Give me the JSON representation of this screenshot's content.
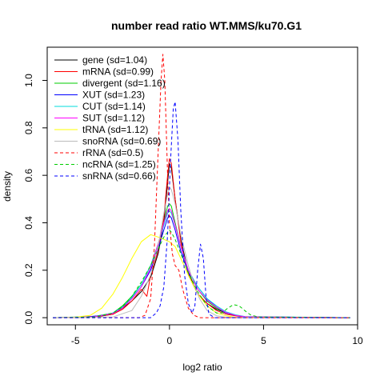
{
  "chart_data": {
    "type": "line",
    "title": "number read ratio WT.MMS/ku70.G1",
    "xlabel": "log2 ratio",
    "ylabel": "density",
    "xlim": [
      -6.5,
      10
    ],
    "ylim": [
      -0.03,
      1.14
    ],
    "x_ticks": [
      -5,
      0,
      5,
      10
    ],
    "y_ticks": [
      0.0,
      0.2,
      0.4,
      0.6,
      0.8,
      1.0
    ],
    "x_tick_labels": [
      "-5",
      "0",
      "5",
      "10"
    ],
    "y_tick_labels": [
      "0.0",
      "0.2",
      "0.4",
      "0.6",
      "0.8",
      "1.0"
    ],
    "grid": false,
    "legend_position": "top-left",
    "series": [
      {
        "name": "gene (sd=1.04)",
        "color": "#000000",
        "dash": "solid",
        "points": [
          [
            -6.2,
            0
          ],
          [
            -4,
            0.002
          ],
          [
            -3,
            0.015
          ],
          [
            -2.5,
            0.04
          ],
          [
            -2,
            0.07
          ],
          [
            -1.5,
            0.11
          ],
          [
            -1,
            0.17
          ],
          [
            -0.6,
            0.27
          ],
          [
            -0.3,
            0.4
          ],
          [
            -0.1,
            0.57
          ],
          [
            0,
            0.65
          ],
          [
            0.1,
            0.63
          ],
          [
            0.3,
            0.5
          ],
          [
            0.6,
            0.33
          ],
          [
            1,
            0.19
          ],
          [
            1.5,
            0.1
          ],
          [
            2,
            0.06
          ],
          [
            2.5,
            0.035
          ],
          [
            3,
            0.02
          ],
          [
            3.5,
            0.01
          ],
          [
            4,
            0.004
          ],
          [
            5,
            0.001
          ],
          [
            9.6,
            0
          ]
        ]
      },
      {
        "name": "mRNA (sd=0.99)",
        "color": "#ff0000",
        "dash": "solid",
        "points": [
          [
            -6.2,
            0
          ],
          [
            -4,
            0.003
          ],
          [
            -3,
            0.015
          ],
          [
            -2.5,
            0.035
          ],
          [
            -2,
            0.07
          ],
          [
            -1.5,
            0.12
          ],
          [
            -1.2,
            0.09
          ],
          [
            -1,
            0.18
          ],
          [
            -0.6,
            0.28
          ],
          [
            -0.3,
            0.42
          ],
          [
            -0.1,
            0.6
          ],
          [
            0,
            0.67
          ],
          [
            0.1,
            0.65
          ],
          [
            0.3,
            0.5
          ],
          [
            0.6,
            0.32
          ],
          [
            1,
            0.18
          ],
          [
            1.5,
            0.1
          ],
          [
            2,
            0.06
          ],
          [
            2.5,
            0.03
          ],
          [
            3,
            0.015
          ],
          [
            3.5,
            0.008
          ],
          [
            4,
            0.003
          ],
          [
            9.6,
            0
          ]
        ]
      },
      {
        "name": "divergent (sd=1.16)",
        "color": "#00cc00",
        "dash": "solid",
        "points": [
          [
            -6.2,
            0
          ],
          [
            -4,
            0.005
          ],
          [
            -3,
            0.02
          ],
          [
            -2.5,
            0.05
          ],
          [
            -2,
            0.09
          ],
          [
            -1.5,
            0.14
          ],
          [
            -1,
            0.22
          ],
          [
            -0.6,
            0.31
          ],
          [
            -0.3,
            0.4
          ],
          [
            -0.1,
            0.47
          ],
          [
            0,
            0.48
          ],
          [
            0.1,
            0.47
          ],
          [
            0.3,
            0.4
          ],
          [
            0.6,
            0.3
          ],
          [
            1,
            0.2
          ],
          [
            1.5,
            0.12
          ],
          [
            2,
            0.07
          ],
          [
            2.5,
            0.04
          ],
          [
            3,
            0.02
          ],
          [
            3.5,
            0.01
          ],
          [
            4,
            0.004
          ],
          [
            9.6,
            0
          ]
        ]
      },
      {
        "name": "XUT (sd=1.23)",
        "color": "#0000ff",
        "dash": "solid",
        "points": [
          [
            -6.2,
            0
          ],
          [
            -4.5,
            0.003
          ],
          [
            -3.5,
            0.01
          ],
          [
            -3,
            0.02
          ],
          [
            -2.5,
            0.045
          ],
          [
            -2,
            0.08
          ],
          [
            -1.5,
            0.13
          ],
          [
            -1,
            0.2
          ],
          [
            -0.6,
            0.29
          ],
          [
            -0.3,
            0.37
          ],
          [
            -0.1,
            0.42
          ],
          [
            0,
            0.43
          ],
          [
            0.1,
            0.42
          ],
          [
            0.3,
            0.37
          ],
          [
            0.6,
            0.28
          ],
          [
            1,
            0.19
          ],
          [
            1.5,
            0.13
          ],
          [
            2,
            0.08
          ],
          [
            2.5,
            0.045
          ],
          [
            3,
            0.02
          ],
          [
            3.5,
            0.01
          ],
          [
            4,
            0.004
          ],
          [
            9.6,
            0
          ]
        ]
      },
      {
        "name": "CUT (sd=1.14)",
        "color": "#00dddd",
        "dash": "solid",
        "points": [
          [
            -6.2,
            0
          ],
          [
            -4,
            0.004
          ],
          [
            -3,
            0.02
          ],
          [
            -2.5,
            0.045
          ],
          [
            -2,
            0.085
          ],
          [
            -1.5,
            0.14
          ],
          [
            -1,
            0.22
          ],
          [
            -0.6,
            0.31
          ],
          [
            -0.3,
            0.39
          ],
          [
            -0.1,
            0.44
          ],
          [
            0,
            0.45
          ],
          [
            0.1,
            0.44
          ],
          [
            0.3,
            0.39
          ],
          [
            0.6,
            0.3
          ],
          [
            1,
            0.2
          ],
          [
            1.5,
            0.13
          ],
          [
            2,
            0.08
          ],
          [
            2.5,
            0.05
          ],
          [
            3,
            0.025
          ],
          [
            3.5,
            0.012
          ],
          [
            4,
            0.005
          ],
          [
            9.6,
            0
          ]
        ]
      },
      {
        "name": "SUT (sd=1.12)",
        "color": "#ff00ff",
        "dash": "solid",
        "points": [
          [
            -6.2,
            0
          ],
          [
            -4,
            0.004
          ],
          [
            -3,
            0.018
          ],
          [
            -2.5,
            0.04
          ],
          [
            -2,
            0.08
          ],
          [
            -1.5,
            0.13
          ],
          [
            -1,
            0.21
          ],
          [
            -0.6,
            0.31
          ],
          [
            -0.3,
            0.4
          ],
          [
            -0.1,
            0.45
          ],
          [
            0,
            0.46
          ],
          [
            0.1,
            0.45
          ],
          [
            0.3,
            0.39
          ],
          [
            0.6,
            0.3
          ],
          [
            1,
            0.2
          ],
          [
            1.5,
            0.12
          ],
          [
            2,
            0.075
          ],
          [
            2.5,
            0.045
          ],
          [
            3,
            0.022
          ],
          [
            3.5,
            0.01
          ],
          [
            4,
            0.004
          ],
          [
            9.6,
            0
          ]
        ]
      },
      {
        "name": "tRNA (sd=1.12)",
        "color": "#ffff00",
        "dash": "solid",
        "points": [
          [
            -6.2,
            0
          ],
          [
            -5,
            0.002
          ],
          [
            -4.2,
            0.01
          ],
          [
            -3.6,
            0.04
          ],
          [
            -3,
            0.1
          ],
          [
            -2.5,
            0.17
          ],
          [
            -2,
            0.25
          ],
          [
            -1.5,
            0.32
          ],
          [
            -1,
            0.35
          ],
          [
            -0.6,
            0.34
          ],
          [
            -0.3,
            0.33
          ],
          [
            0,
            0.32
          ],
          [
            0.3,
            0.3
          ],
          [
            0.6,
            0.25
          ],
          [
            1,
            0.18
          ],
          [
            1.5,
            0.1
          ],
          [
            2,
            0.05
          ],
          [
            2.5,
            0.02
          ],
          [
            3,
            0.008
          ],
          [
            3.5,
            0.002
          ],
          [
            9.6,
            0
          ]
        ]
      },
      {
        "name": "snoRNA (sd=0.69)",
        "color": "#bbbbbb",
        "dash": "solid",
        "points": [
          [
            -6.2,
            0
          ],
          [
            -3,
            0.003
          ],
          [
            -2,
            0.03
          ],
          [
            -1.5,
            0.09
          ],
          [
            -1,
            0.18
          ],
          [
            -0.6,
            0.3
          ],
          [
            -0.3,
            0.44
          ],
          [
            -0.1,
            0.52
          ],
          [
            0,
            0.55
          ],
          [
            0.1,
            0.54
          ],
          [
            0.3,
            0.48
          ],
          [
            0.6,
            0.35
          ],
          [
            1,
            0.22
          ],
          [
            1.3,
            0.14
          ],
          [
            1.6,
            0.08
          ],
          [
            2,
            0.03
          ],
          [
            2.5,
            0.008
          ],
          [
            3,
            0.002
          ],
          [
            9.6,
            0
          ]
        ]
      },
      {
        "name": "rRNA (sd=0.5)",
        "color": "#ff0000",
        "dash": "dashed",
        "points": [
          [
            -6.2,
            0
          ],
          [
            -1.6,
            0
          ],
          [
            -1.3,
            0.01
          ],
          [
            -1,
            0.08
          ],
          [
            -0.8,
            0.3
          ],
          [
            -0.6,
            0.7
          ],
          [
            -0.45,
            1.0
          ],
          [
            -0.35,
            1.11
          ],
          [
            -0.25,
            1.0
          ],
          [
            -0.1,
            0.6
          ],
          [
            0,
            0.4
          ],
          [
            0.15,
            0.27
          ],
          [
            0.3,
            0.22
          ],
          [
            0.5,
            0.2
          ],
          [
            0.7,
            0.12
          ],
          [
            1,
            0.04
          ],
          [
            1.3,
            0.01
          ],
          [
            1.6,
            0
          ],
          [
            9.6,
            0
          ]
        ]
      },
      {
        "name": "ncRNA (sd=1.25)",
        "color": "#00cc00",
        "dash": "dashed",
        "points": [
          [
            -6.2,
            0
          ],
          [
            -4,
            0.003
          ],
          [
            -3,
            0.02
          ],
          [
            -2.5,
            0.045
          ],
          [
            -2,
            0.09
          ],
          [
            -1.5,
            0.15
          ],
          [
            -1,
            0.22
          ],
          [
            -0.6,
            0.29
          ],
          [
            -0.3,
            0.34
          ],
          [
            -0.1,
            0.36
          ],
          [
            0,
            0.37
          ],
          [
            0.1,
            0.36
          ],
          [
            0.3,
            0.33
          ],
          [
            0.6,
            0.27
          ],
          [
            1,
            0.19
          ],
          [
            1.5,
            0.11
          ],
          [
            2,
            0.05
          ],
          [
            2.5,
            0.02
          ],
          [
            2.8,
            0.02
          ],
          [
            3.1,
            0.04
          ],
          [
            3.4,
            0.055
          ],
          [
            3.7,
            0.05
          ],
          [
            4,
            0.03
          ],
          [
            4.3,
            0.012
          ],
          [
            4.7,
            0.003
          ],
          [
            9.6,
            0
          ]
        ]
      },
      {
        "name": "snRNA (sd=0.66)",
        "color": "#0000ff",
        "dash": "dashed",
        "points": [
          [
            -6.2,
            0
          ],
          [
            -1,
            0
          ],
          [
            -0.7,
            0.02
          ],
          [
            -0.5,
            0.05
          ],
          [
            -0.3,
            0.13
          ],
          [
            -0.1,
            0.35
          ],
          [
            0.05,
            0.65
          ],
          [
            0.2,
            0.88
          ],
          [
            0.3,
            0.91
          ],
          [
            0.45,
            0.75
          ],
          [
            0.6,
            0.45
          ],
          [
            0.8,
            0.18
          ],
          [
            1,
            0.06
          ],
          [
            1.2,
            0.02
          ],
          [
            1.35,
            0.05
          ],
          [
            1.5,
            0.2
          ],
          [
            1.65,
            0.31
          ],
          [
            1.8,
            0.25
          ],
          [
            1.95,
            0.08
          ],
          [
            2.1,
            0.015
          ],
          [
            2.4,
            0
          ],
          [
            9.6,
            0
          ]
        ]
      }
    ]
  }
}
